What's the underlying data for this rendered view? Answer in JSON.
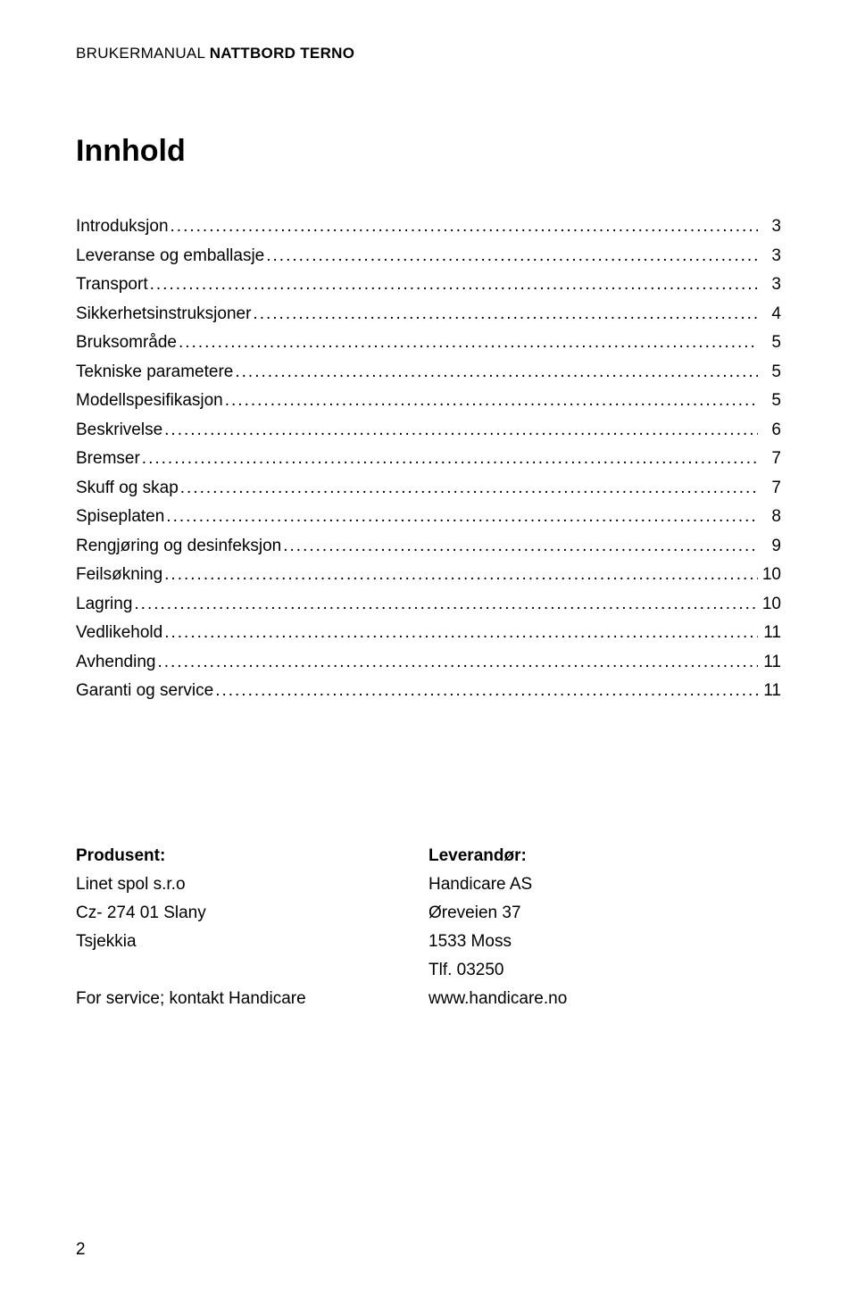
{
  "header": {
    "prefix": "BRUKERMANUAL",
    "title": "NATTBORD TERNO"
  },
  "toc": {
    "title": "Innhold",
    "entries": [
      {
        "label": "Introduksjon",
        "page": "3"
      },
      {
        "label": "Leveranse og emballasje",
        "page": "3"
      },
      {
        "label": "Transport",
        "page": "3"
      },
      {
        "label": "Sikkerhetsinstruksjoner",
        "page": "4"
      },
      {
        "label": "Bruksområde",
        "page": "5"
      },
      {
        "label": "Tekniske parametere",
        "page": "5"
      },
      {
        "label": "Modellspesifikasjon",
        "page": "5"
      },
      {
        "label": "Beskrivelse",
        "page": "6"
      },
      {
        "label": "Bremser",
        "page": "7"
      },
      {
        "label": "Skuff og skap",
        "page": "7"
      },
      {
        "label": "Spiseplaten",
        "page": "8"
      },
      {
        "label": "Rengjøring og desinfeksjon",
        "page": "9"
      },
      {
        "label": "Feilsøkning",
        "page": "10"
      },
      {
        "label": "Lagring",
        "page": "10"
      },
      {
        "label": "Vedlikehold",
        "page": "11"
      },
      {
        "label": "Avhending",
        "page": "11"
      },
      {
        "label": "Garanti og service",
        "page": "11"
      }
    ]
  },
  "info": {
    "producer": {
      "heading": "Produsent:",
      "lines": [
        "Linet spol s.r.o",
        "Cz- 274 01 Slany",
        "Tsjekkia",
        "",
        "For service; kontakt Handicare"
      ]
    },
    "supplier": {
      "heading": "Leverandør:",
      "lines": [
        "Handicare AS",
        "Øreveien 37",
        "1533 Moss",
        "Tlf. 03250",
        "www.handicare.no"
      ]
    }
  },
  "pageNumber": "2",
  "colors": {
    "text": "#000000",
    "background": "#ffffff"
  },
  "typography": {
    "header_fontsize": 17,
    "toc_title_fontsize": 34,
    "toc_entry_fontsize": 19,
    "info_fontsize": 19,
    "page_number_fontsize": 19
  }
}
